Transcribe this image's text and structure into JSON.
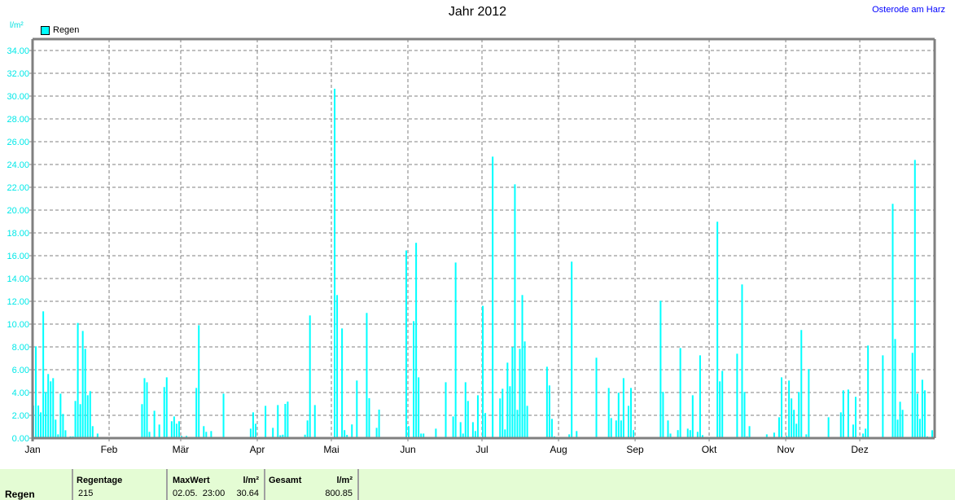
{
  "header": {
    "title": "Jahr 2012",
    "location": "Osterode am Harz"
  },
  "stats": {
    "row_label": "Regen",
    "regentage_label": "Regentage",
    "regentage_value": "215",
    "maxwert_label": "MaxWert",
    "maxwert_unit": "l/m²",
    "maxwert_time": "02.05.  23:00",
    "maxwert_value": "30.64",
    "gesamt_label": "Gesamt",
    "gesamt_unit": "l/m²",
    "gesamt_value": "800.85"
  },
  "chart_data": {
    "type": "bar",
    "title": "Jahr 2012",
    "ylabel": "l/m²",
    "ylim": [
      0,
      34
    ],
    "yticks": [
      "0.00",
      "2.00",
      "4.00",
      "6.00",
      "8.00",
      "10.00",
      "12.00",
      "14.00",
      "16.00",
      "18.00",
      "20.00",
      "22.00",
      "24.00",
      "26.00",
      "28.00",
      "30.00",
      "32.00",
      "34.00"
    ],
    "xlim": [
      "2012-01-01",
      "2012-12-31"
    ],
    "xticks": [
      "Jan",
      "Feb",
      "Mär",
      "Apr",
      "Mai",
      "Jun",
      "Jul",
      "Aug",
      "Sep",
      "Okt",
      "Nov",
      "Dez"
    ],
    "grid": true,
    "legend": "top-left",
    "series": [
      {
        "name": "Regen",
        "color": "#00ffff",
        "points": [
          [
            "01-01",
            2.86
          ],
          [
            "01-02",
            8.05
          ],
          [
            "01-03",
            2.86
          ],
          [
            "01-04",
            2.26
          ],
          [
            "01-05",
            11.12
          ],
          [
            "01-06",
            4.05
          ],
          [
            "01-07",
            5.62
          ],
          [
            "01-08",
            4.98
          ],
          [
            "01-09",
            5.26
          ],
          [
            "01-10",
            1.62
          ],
          [
            "01-11",
            0.33
          ],
          [
            "01-12",
            3.9
          ],
          [
            "01-13",
            2.12
          ],
          [
            "01-14",
            0.69
          ],
          [
            "01-16",
            0.15
          ],
          [
            "01-17",
            0.15
          ],
          [
            "01-18",
            3.26
          ],
          [
            "01-19",
            10.1
          ],
          [
            "01-20",
            2.98
          ],
          [
            "01-21",
            9.4
          ],
          [
            "01-22",
            7.83
          ],
          [
            "01-23",
            3.76
          ],
          [
            "01-24",
            4.12
          ],
          [
            "01-25",
            1.05
          ],
          [
            "01-27",
            0.4
          ],
          [
            "01-28",
            0.05
          ],
          [
            "02-11",
            0.05
          ],
          [
            "02-14",
            2.98
          ],
          [
            "02-15",
            5.26
          ],
          [
            "02-16",
            4.9
          ],
          [
            "02-17",
            0.55
          ],
          [
            "02-19",
            2.4
          ],
          [
            "02-21",
            1.19
          ],
          [
            "02-23",
            4.48
          ],
          [
            "02-24",
            5.33
          ],
          [
            "02-26",
            1.48
          ],
          [
            "02-27",
            1.9
          ],
          [
            "02-28",
            1.26
          ],
          [
            "02-29",
            1.48
          ],
          [
            "03-01",
            0.19
          ],
          [
            "03-03",
            0.19
          ],
          [
            "03-04",
            0.05
          ],
          [
            "03-07",
            4.4
          ],
          [
            "03-08",
            9.9
          ],
          [
            "03-10",
            1.05
          ],
          [
            "03-11",
            0.55
          ],
          [
            "03-13",
            0.62
          ],
          [
            "03-18",
            3.9
          ],
          [
            "03-29",
            0.83
          ],
          [
            "03-30",
            2.26
          ],
          [
            "03-31",
            1.26
          ],
          [
            "04-02",
            0.1
          ],
          [
            "04-04",
            2.83
          ],
          [
            "04-07",
            0.9
          ],
          [
            "04-09",
            2.9
          ],
          [
            "04-10",
            0.25
          ],
          [
            "04-11",
            0.3
          ],
          [
            "04-12",
            3.0
          ],
          [
            "04-13",
            3.2
          ],
          [
            "04-18",
            0.1
          ],
          [
            "04-19",
            0.05
          ],
          [
            "04-20",
            0.3
          ],
          [
            "04-21",
            1.55
          ],
          [
            "04-22",
            10.76
          ],
          [
            "04-23",
            0.1
          ],
          [
            "04-24",
            2.9
          ],
          [
            "04-27",
            0.05
          ],
          [
            "04-28",
            0.1
          ],
          [
            "05-02",
            30.64
          ],
          [
            "05-03",
            12.55
          ],
          [
            "05-05",
            9.62
          ],
          [
            "05-06",
            0.7
          ],
          [
            "05-07",
            0.28
          ],
          [
            "05-09",
            1.2
          ],
          [
            "05-11",
            5.05
          ],
          [
            "05-15",
            10.98
          ],
          [
            "05-16",
            3.5
          ],
          [
            "05-18",
            0.05
          ],
          [
            "05-19",
            0.9
          ],
          [
            "05-20",
            2.5
          ],
          [
            "05-31",
            16.46
          ],
          [
            "06-01",
            1.05
          ],
          [
            "06-03",
            10.26
          ],
          [
            "06-04",
            17.13
          ],
          [
            "06-05",
            5.33
          ],
          [
            "06-06",
            0.4
          ],
          [
            "06-07",
            0.4
          ],
          [
            "06-11",
            0.05
          ],
          [
            "06-12",
            0.83
          ],
          [
            "06-13",
            0.1
          ],
          [
            "06-14",
            0.1
          ],
          [
            "06-15",
            0.1
          ],
          [
            "06-16",
            4.9
          ],
          [
            "06-19",
            1.9
          ],
          [
            "06-20",
            15.4
          ],
          [
            "06-22",
            1.4
          ],
          [
            "06-23",
            0.4
          ],
          [
            "06-24",
            4.9
          ],
          [
            "06-25",
            3.26
          ],
          [
            "06-27",
            1.4
          ],
          [
            "06-28",
            0.62
          ],
          [
            "06-29",
            3.76
          ],
          [
            "07-01",
            11.6
          ],
          [
            "07-02",
            2.2
          ],
          [
            "07-03",
            0.1
          ],
          [
            "07-05",
            24.69
          ],
          [
            "07-06",
            0.05
          ],
          [
            "07-07",
            0.1
          ],
          [
            "07-08",
            3.48
          ],
          [
            "07-09",
            4.33
          ],
          [
            "07-10",
            0.76
          ],
          [
            "07-11",
            6.62
          ],
          [
            "07-12",
            4.55
          ],
          [
            "07-13",
            7.98
          ],
          [
            "07-14",
            22.26
          ],
          [
            "07-15",
            2.48
          ],
          [
            "07-16",
            7.83
          ],
          [
            "07-17",
            12.55
          ],
          [
            "07-18",
            8.48
          ],
          [
            "07-19",
            2.83
          ],
          [
            "07-27",
            6.26
          ],
          [
            "07-28",
            4.62
          ],
          [
            "07-29",
            1.69
          ],
          [
            "07-30",
            0.15
          ],
          [
            "08-05",
            0.33
          ],
          [
            "08-06",
            15.48
          ],
          [
            "08-08",
            0.62
          ],
          [
            "08-16",
            7.05
          ],
          [
            "08-20",
            0.1
          ],
          [
            "08-21",
            4.4
          ],
          [
            "08-22",
            1.76
          ],
          [
            "08-24",
            1.55
          ],
          [
            "08-25",
            3.98
          ],
          [
            "08-26",
            1.55
          ],
          [
            "08-27",
            5.26
          ],
          [
            "08-29",
            2.83
          ],
          [
            "08-30",
            4.4
          ],
          [
            "08-31",
            0.7
          ],
          [
            "09-11",
            12.05
          ],
          [
            "09-12",
            4.05
          ],
          [
            "09-13",
            0.05
          ],
          [
            "09-14",
            1.55
          ],
          [
            "09-15",
            0.4
          ],
          [
            "09-18",
            0.7
          ],
          [
            "09-19",
            7.9
          ],
          [
            "09-20",
            0.05
          ],
          [
            "09-21",
            0.05
          ],
          [
            "09-22",
            0.83
          ],
          [
            "09-23",
            0.7
          ],
          [
            "09-24",
            3.76
          ],
          [
            "09-26",
            0.55
          ],
          [
            "09-27",
            7.26
          ],
          [
            "09-28",
            0.26
          ],
          [
            "10-04",
            18.98
          ],
          [
            "10-05",
            4.98
          ],
          [
            "10-06",
            5.9
          ],
          [
            "10-07",
            0.05
          ],
          [
            "10-12",
            7.4
          ],
          [
            "10-14",
            13.48
          ],
          [
            "10-15",
            4.05
          ],
          [
            "10-16",
            0.15
          ],
          [
            "10-17",
            1.05
          ],
          [
            "10-24",
            0.33
          ],
          [
            "10-27",
            0.48
          ],
          [
            "10-29",
            1.83
          ],
          [
            "10-30",
            5.33
          ],
          [
            "11-01",
            0.2
          ],
          [
            "11-02",
            5.05
          ],
          [
            "11-03",
            3.48
          ],
          [
            "11-04",
            2.48
          ],
          [
            "11-05",
            1.26
          ],
          [
            "11-06",
            4.05
          ],
          [
            "11-07",
            9.48
          ],
          [
            "11-09",
            0.33
          ],
          [
            "11-10",
            6.05
          ],
          [
            "11-11",
            0.05
          ],
          [
            "11-15",
            0.05
          ],
          [
            "11-18",
            1.83
          ],
          [
            "11-20",
            0.05
          ],
          [
            "11-21",
            0.05
          ],
          [
            "11-23",
            2.26
          ],
          [
            "11-24",
            4.19
          ],
          [
            "11-25",
            0.05
          ],
          [
            "11-26",
            4.26
          ],
          [
            "11-27",
            0.1
          ],
          [
            "11-28",
            1.19
          ],
          [
            "11-29",
            3.62
          ],
          [
            "11-30",
            0.05
          ],
          [
            "12-01",
            0.05
          ],
          [
            "12-02",
            0.4
          ],
          [
            "12-03",
            0.83
          ],
          [
            "12-04",
            8.12
          ],
          [
            "12-05",
            0.05
          ],
          [
            "12-10",
            7.26
          ],
          [
            "12-14",
            20.55
          ],
          [
            "12-15",
            8.69
          ],
          [
            "12-16",
            1.62
          ],
          [
            "12-17",
            3.19
          ],
          [
            "12-18",
            2.48
          ],
          [
            "12-20",
            0.05
          ],
          [
            "12-21",
            0.05
          ],
          [
            "12-22",
            7.48
          ],
          [
            "12-23",
            24.4
          ],
          [
            "12-24",
            3.9
          ],
          [
            "12-25",
            1.69
          ],
          [
            "12-26",
            5.12
          ],
          [
            "12-27",
            4.19
          ],
          [
            "12-28",
            0.15
          ],
          [
            "12-30",
            0.69
          ],
          [
            "12-31",
            0.3
          ]
        ]
      }
    ]
  }
}
